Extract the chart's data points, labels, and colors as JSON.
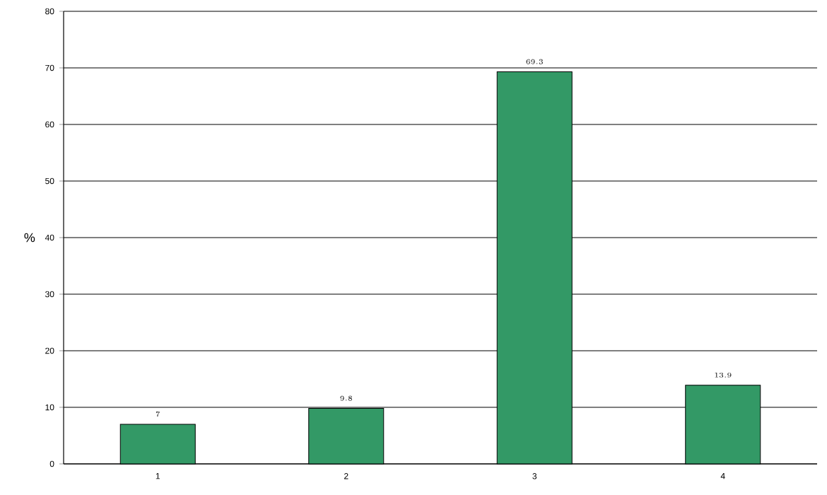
{
  "chart_data": {
    "type": "bar",
    "ylabel": "%",
    "categories": [
      "1",
      "2",
      "3",
      "4"
    ],
    "values": [
      7,
      9.8,
      69.3,
      13.9
    ],
    "color": "#339966",
    "ylim": [
      0,
      80
    ],
    "yticks": [
      0,
      10,
      20,
      30,
      40,
      50,
      60,
      70,
      80
    ],
    "grid": "y",
    "data_labels": true
  }
}
